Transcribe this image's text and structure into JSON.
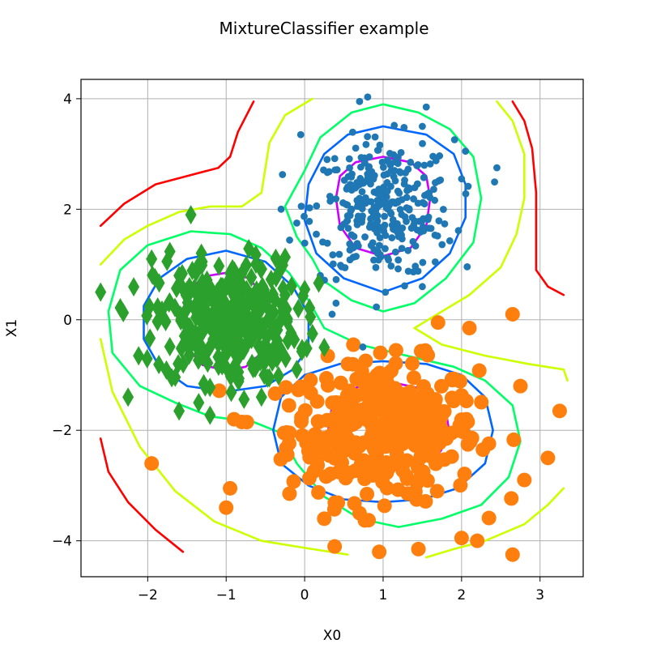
{
  "chart_data": {
    "type": "scatter",
    "title": "MixtureClassifier example",
    "xlabel": "X0",
    "ylabel": "X1",
    "xlim": [
      -2.85,
      3.55
    ],
    "ylim": [
      -4.65,
      4.35
    ],
    "xticks": [
      -2,
      -1,
      0,
      1,
      2,
      3
    ],
    "xtick_labels": [
      "−2",
      "−1",
      "0",
      "1",
      "2",
      "3"
    ],
    "yticks": [
      -4,
      -2,
      0,
      2,
      4
    ],
    "ytick_labels": [
      "−4",
      "−2",
      "0",
      "2",
      "4"
    ],
    "grid": true,
    "legend": "none",
    "series": [
      {
        "marker": "circle-small",
        "color": "#1f77b4",
        "center": [
          1.0,
          2.0
        ],
        "count": 320,
        "spread": [
          0.45,
          0.62
        ],
        "extra_points": [
          [
            0.7,
            3.95
          ],
          [
            1.55,
            3.85
          ],
          [
            -0.05,
            3.35
          ],
          [
            1.5,
            3.5
          ],
          [
            2.05,
            3.05
          ],
          [
            2.45,
            2.75
          ],
          [
            2.0,
            2.55
          ],
          [
            -0.3,
            2.0
          ],
          [
            -0.1,
            1.75
          ],
          [
            0.2,
            0.8
          ],
          [
            1.5,
            0.6
          ],
          [
            0.4,
            0.3
          ],
          [
            0.35,
            0.1
          ]
        ]
      },
      {
        "marker": "circle-large",
        "color": "#ff7f0e",
        "center": [
          1.0,
          -2.0
        ],
        "count": 360,
        "spread": [
          0.6,
          0.62
        ],
        "extra_points": [
          [
            -1.95,
            -2.6
          ],
          [
            -1.0,
            -3.4
          ],
          [
            -0.95,
            -3.05
          ],
          [
            2.65,
            0.1
          ],
          [
            1.7,
            -0.05
          ],
          [
            2.1,
            -0.15
          ],
          [
            2.75,
            -1.2
          ],
          [
            3.25,
            -1.65
          ],
          [
            3.1,
            -2.5
          ],
          [
            2.8,
            -2.9
          ],
          [
            2.65,
            -4.25
          ],
          [
            2.0,
            -3.95
          ],
          [
            2.2,
            -4.0
          ],
          [
            1.45,
            -4.15
          ],
          [
            0.95,
            -4.2
          ],
          [
            0.25,
            -3.6
          ],
          [
            0.7,
            -3.5
          ],
          [
            -0.2,
            -1.55
          ],
          [
            -0.8,
            -1.85
          ],
          [
            -0.9,
            -1.8
          ]
        ]
      },
      {
        "marker": "diamond",
        "color": "#2ca02c",
        "center": [
          -1.0,
          0.0
        ],
        "count": 340,
        "spread": [
          0.45,
          0.55
        ],
        "extra_points": [
          [
            -2.6,
            0.5
          ],
          [
            -2.25,
            -1.4
          ],
          [
            -1.45,
            1.9
          ],
          [
            -1.95,
            1.1
          ],
          [
            -1.6,
            -1.65
          ],
          [
            -1.35,
            -1.5
          ],
          [
            -0.45,
            -1.05
          ],
          [
            -0.1,
            -0.9
          ],
          [
            0.1,
            -0.25
          ],
          [
            0.25,
            -0.5
          ],
          [
            -0.25,
            0.45
          ],
          [
            -0.55,
            -1.4
          ]
        ]
      }
    ],
    "contours": [
      {
        "color": "#ff0000",
        "paths": [
          [
            [
              -2.6,
              1.7
            ],
            [
              -2.3,
              2.1
            ],
            [
              -1.9,
              2.45
            ],
            [
              -1.5,
              2.6
            ],
            [
              -1.1,
              2.75
            ],
            [
              -0.95,
              2.95
            ],
            [
              -0.85,
              3.4
            ],
            [
              -0.65,
              3.95
            ]
          ],
          [
            [
              -2.6,
              -2.15
            ],
            [
              -2.5,
              -2.75
            ],
            [
              -2.25,
              -3.3
            ],
            [
              -1.9,
              -3.8
            ],
            [
              -1.55,
              -4.2
            ]
          ],
          [
            [
              2.65,
              3.95
            ],
            [
              2.8,
              3.6
            ],
            [
              2.9,
              3.1
            ],
            [
              2.95,
              2.3
            ],
            [
              2.95,
              1.5
            ],
            [
              2.95,
              0.9
            ],
            [
              3.1,
              0.6
            ],
            [
              3.3,
              0.45
            ]
          ]
        ]
      },
      {
        "color": "#ccff00",
        "paths": [
          [
            [
              -2.6,
              1.0
            ],
            [
              -2.3,
              1.45
            ],
            [
              -2.0,
              1.7
            ],
            [
              -1.6,
              1.95
            ],
            [
              -1.2,
              2.05
            ],
            [
              -0.8,
              2.05
            ],
            [
              -0.55,
              2.3
            ],
            [
              -0.5,
              2.75
            ],
            [
              -0.45,
              3.2
            ],
            [
              -0.25,
              3.7
            ],
            [
              0.1,
              4.0
            ]
          ],
          [
            [
              -2.6,
              -0.35
            ],
            [
              -2.45,
              -1.3
            ],
            [
              -2.1,
              -2.3
            ],
            [
              -1.65,
              -3.1
            ],
            [
              -1.15,
              -3.65
            ],
            [
              -0.55,
              -4.0
            ],
            [
              0.1,
              -4.15
            ],
            [
              0.55,
              -4.25
            ]
          ],
          [
            [
              2.45,
              3.95
            ],
            [
              2.65,
              3.6
            ],
            [
              2.8,
              3.0
            ],
            [
              2.8,
              2.2
            ],
            [
              2.7,
              1.55
            ],
            [
              2.5,
              0.95
            ],
            [
              2.1,
              0.45
            ],
            [
              1.75,
              0.15
            ],
            [
              1.4,
              -0.15
            ],
            [
              1.75,
              -0.45
            ],
            [
              2.3,
              -0.65
            ],
            [
              2.85,
              -0.8
            ],
            [
              3.3,
              -0.9
            ],
            [
              3.35,
              -1.1
            ]
          ],
          [
            [
              3.3,
              -3.05
            ],
            [
              3.1,
              -3.35
            ],
            [
              2.8,
              -3.7
            ],
            [
              2.3,
              -4.0
            ],
            [
              1.9,
              -4.15
            ],
            [
              1.55,
              -4.3
            ]
          ]
        ]
      },
      {
        "color": "#00ff66",
        "paths": [
          [
            [
              -0.25,
              2.05
            ],
            [
              0.0,
              2.7
            ],
            [
              0.2,
              3.3
            ],
            [
              0.6,
              3.75
            ],
            [
              1.0,
              3.9
            ],
            [
              1.45,
              3.75
            ],
            [
              1.85,
              3.45
            ],
            [
              2.15,
              2.95
            ],
            [
              2.25,
              2.2
            ],
            [
              2.15,
              1.4
            ],
            [
              1.8,
              0.75
            ],
            [
              1.4,
              0.3
            ],
            [
              1.0,
              0.15
            ],
            [
              0.6,
              0.35
            ],
            [
              0.25,
              0.7
            ],
            [
              0.1,
              1.1
            ],
            [
              -0.1,
              1.5
            ],
            [
              -0.25,
              2.05
            ]
          ],
          [
            [
              -0.95,
              1.55
            ],
            [
              -1.45,
              1.6
            ],
            [
              -2.0,
              1.35
            ],
            [
              -2.35,
              0.9
            ],
            [
              -2.5,
              0.15
            ],
            [
              -2.45,
              -0.6
            ],
            [
              -2.1,
              -1.2
            ],
            [
              -1.65,
              -1.5
            ],
            [
              -1.2,
              -1.75
            ],
            [
              -0.65,
              -1.85
            ],
            [
              -0.3,
              -2.05
            ],
            [
              -0.1,
              -2.6
            ],
            [
              0.25,
              -3.2
            ],
            [
              0.7,
              -3.6
            ],
            [
              1.2,
              -3.75
            ],
            [
              1.75,
              -3.6
            ],
            [
              2.25,
              -3.35
            ],
            [
              2.6,
              -2.85
            ],
            [
              2.75,
              -2.2
            ],
            [
              2.65,
              -1.55
            ],
            [
              2.3,
              -1.1
            ],
            [
              1.9,
              -0.85
            ],
            [
              1.3,
              -0.65
            ],
            [
              0.7,
              -0.45
            ],
            [
              0.25,
              -0.15
            ],
            [
              0.05,
              0.35
            ],
            [
              -0.2,
              0.85
            ],
            [
              -0.55,
              1.3
            ],
            [
              -0.95,
              1.55
            ]
          ]
        ]
      },
      {
        "color": "#0066ff",
        "paths": [
          [
            [
              1.0,
              3.5
            ],
            [
              1.55,
              3.35
            ],
            [
              1.9,
              3.0
            ],
            [
              2.05,
              2.45
            ],
            [
              2.05,
              1.85
            ],
            [
              1.85,
              1.2
            ],
            [
              1.5,
              0.75
            ],
            [
              1.0,
              0.5
            ],
            [
              0.5,
              0.75
            ],
            [
              0.15,
              1.2
            ],
            [
              0.0,
              1.8
            ],
            [
              0.05,
              2.45
            ],
            [
              0.25,
              3.0
            ],
            [
              0.55,
              3.35
            ],
            [
              1.0,
              3.5
            ]
          ],
          [
            [
              -1.0,
              1.25
            ],
            [
              -0.5,
              1.05
            ],
            [
              -0.15,
              0.6
            ],
            [
              0.05,
              0.1
            ],
            [
              0.05,
              -0.5
            ],
            [
              -0.15,
              -0.9
            ],
            [
              -0.5,
              -1.2
            ],
            [
              -1.0,
              -1.3
            ],
            [
              -1.5,
              -1.2
            ],
            [
              -1.85,
              -0.85
            ],
            [
              -2.05,
              -0.35
            ],
            [
              -2.05,
              0.25
            ],
            [
              -1.85,
              0.75
            ],
            [
              -1.5,
              1.1
            ],
            [
              -1.0,
              1.25
            ]
          ],
          [
            [
              1.0,
              -0.75
            ],
            [
              1.55,
              -0.8
            ],
            [
              2.0,
              -1.0
            ],
            [
              2.3,
              -1.4
            ],
            [
              2.4,
              -2.0
            ],
            [
              2.3,
              -2.6
            ],
            [
              1.95,
              -3.05
            ],
            [
              1.5,
              -3.25
            ],
            [
              1.0,
              -3.3
            ],
            [
              0.5,
              -3.25
            ],
            [
              0.05,
              -3.0
            ],
            [
              -0.3,
              -2.6
            ],
            [
              -0.4,
              -2.0
            ],
            [
              -0.3,
              -1.4
            ],
            [
              0.0,
              -1.0
            ],
            [
              0.45,
              -0.8
            ],
            [
              1.0,
              -0.75
            ]
          ]
        ]
      },
      {
        "color": "#cc00ff",
        "paths": [
          [
            [
              1.0,
              2.95
            ],
            [
              1.35,
              2.85
            ],
            [
              1.55,
              2.6
            ],
            [
              1.6,
              2.2
            ],
            [
              1.55,
              1.7
            ],
            [
              1.35,
              1.3
            ],
            [
              1.0,
              1.15
            ],
            [
              0.65,
              1.3
            ],
            [
              0.45,
              1.7
            ],
            [
              0.4,
              2.2
            ],
            [
              0.45,
              2.6
            ],
            [
              0.65,
              2.85
            ],
            [
              1.0,
              2.95
            ]
          ],
          [
            [
              -1.0,
              0.85
            ],
            [
              -0.7,
              0.75
            ],
            [
              -0.5,
              0.35
            ],
            [
              -0.45,
              -0.2
            ],
            [
              -0.55,
              -0.6
            ],
            [
              -0.75,
              -0.85
            ],
            [
              -1.0,
              -0.92
            ],
            [
              -1.3,
              -0.82
            ],
            [
              -1.5,
              -0.5
            ],
            [
              -1.55,
              0.0
            ],
            [
              -1.48,
              0.5
            ],
            [
              -1.3,
              0.78
            ],
            [
              -1.0,
              0.85
            ]
          ],
          [
            [
              1.0,
              -1.1
            ],
            [
              1.5,
              -1.25
            ],
            [
              1.8,
              -1.65
            ],
            [
              1.85,
              -2.1
            ],
            [
              1.7,
              -2.45
            ],
            [
              1.3,
              -2.6
            ],
            [
              0.85,
              -2.6
            ],
            [
              0.45,
              -2.4
            ],
            [
              0.3,
              -2.0
            ],
            [
              0.35,
              -1.55
            ],
            [
              0.6,
              -1.25
            ],
            [
              1.0,
              -1.1
            ]
          ]
        ]
      }
    ]
  }
}
